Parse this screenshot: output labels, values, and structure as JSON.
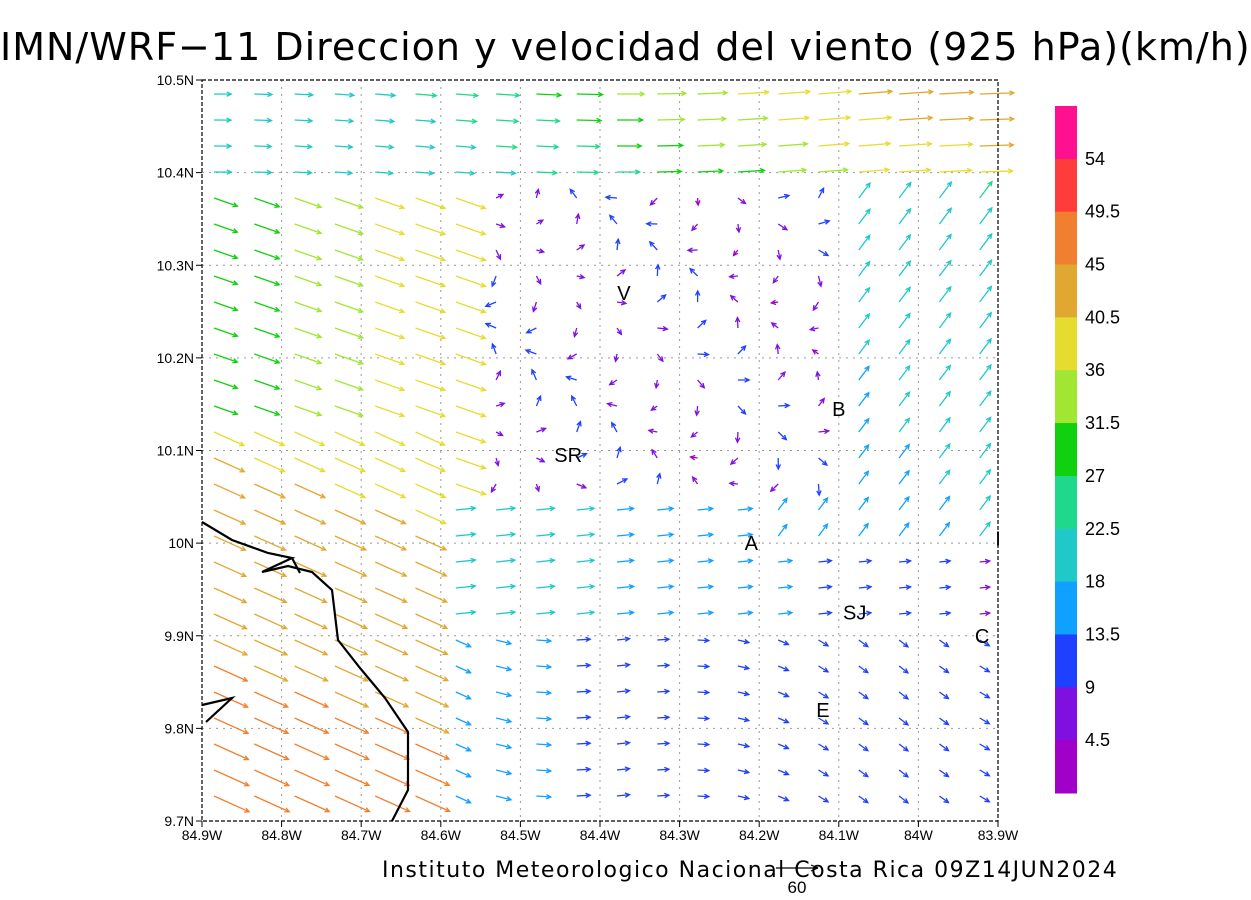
{
  "title": "IMN/WRF−11 Direccion y velocidad del viento (925 hPa)(km/h)",
  "credit": "Instituto Meteorologico Nacional Costa Rica 09Z14JUN2024",
  "reference_vector": {
    "label": "60",
    "value": 60
  },
  "map": {
    "lon_range": [
      -84.9,
      -83.9
    ],
    "lat_range": [
      9.7,
      10.5
    ],
    "x_ticks": [
      "84.9W",
      "84.8W",
      "84.7W",
      "84.6W",
      "84.5W",
      "84.4W",
      "84.3W",
      "84.2W",
      "84.1W",
      "84W",
      "83.9W"
    ],
    "y_ticks": [
      "9.7N",
      "9.8N",
      "9.9N",
      "10N",
      "10.1N",
      "10.2N",
      "10.3N",
      "10.4N",
      "10.5N"
    ],
    "grid": true,
    "stations": [
      {
        "label": "V",
        "lon": -84.37,
        "lat": 10.27
      },
      {
        "label": "SR",
        "lon": -84.44,
        "lat": 10.095
      },
      {
        "label": "B",
        "lon": -84.1,
        "lat": 10.145
      },
      {
        "label": "A",
        "lon": -84.21,
        "lat": 10.0
      },
      {
        "label": "SJ",
        "lon": -84.08,
        "lat": 9.925
      },
      {
        "label": "C",
        "lon": -83.92,
        "lat": 9.9
      },
      {
        "label": "E",
        "lon": -84.12,
        "lat": 9.82
      },
      {
        "label": "I",
        "lon": -83.9,
        "lat": 10.005
      }
    ]
  },
  "colorbar": {
    "labels": [
      "54",
      "49.5",
      "45",
      "40.5",
      "36",
      "31.5",
      "27",
      "22.5",
      "18",
      "13.5",
      "9",
      "4.5"
    ],
    "colors": [
      "#ff1090",
      "#ff3c3c",
      "#f08030",
      "#e0a830",
      "#e6dc30",
      "#a0e632",
      "#10d010",
      "#20d88c",
      "#20c8c8",
      "#10a0ff",
      "#2040ff",
      "#8010e0",
      "#a000c8"
    ]
  }
}
